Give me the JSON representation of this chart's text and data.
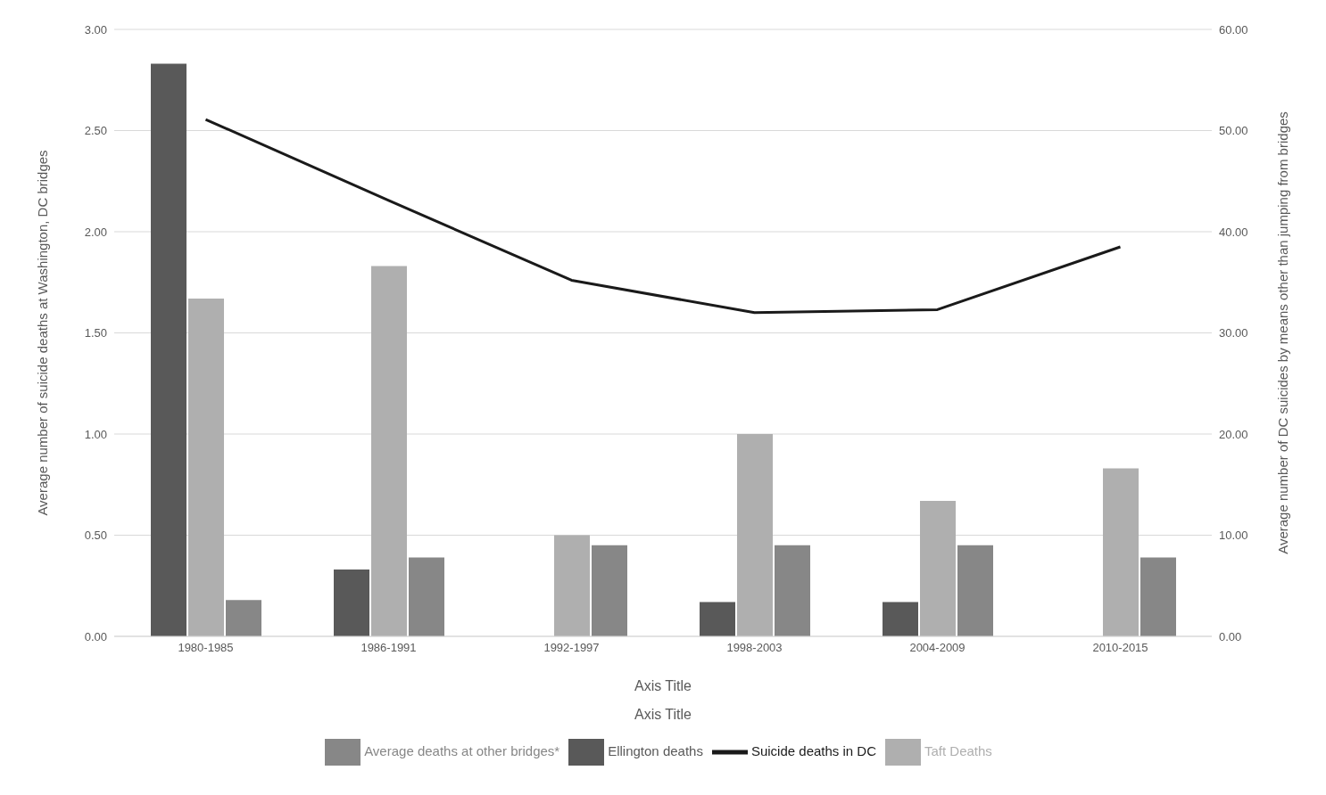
{
  "chart_data": {
    "type": "bar",
    "xlabel": "Axis Title",
    "ylabel": "Average number of suicide deaths at Washington, DC bridges",
    "y2label": "Average number of DC suicides by means other than jumping from bridges",
    "categories": [
      "1980-1985",
      "1986-1991",
      "1992-1997",
      "1998-2003",
      "2004-2009",
      "2010-2015"
    ],
    "series": [
      {
        "name": "Ellington deaths",
        "color": "#595959",
        "values": [
          2.83,
          0.33,
          0,
          0.17,
          0.17,
          0
        ]
      },
      {
        "name": "Taft Deaths",
        "color": "#afafaf",
        "values": [
          1.67,
          1.83,
          0.5,
          1.0,
          0.67,
          0.83
        ]
      },
      {
        "name": "Average deaths at other bridges*",
        "color": "#878787",
        "values": [
          0.18,
          0.39,
          0.45,
          0.45,
          0.45,
          0.39
        ]
      },
      {
        "name": "Suicide deaths in DC",
        "type": "line",
        "axis": "y2",
        "color": "#1a1a1a",
        "values": [
          51.1,
          43.1,
          35.2,
          32.0,
          32.3,
          38.5
        ]
      }
    ],
    "ylim": [
      0,
      3
    ],
    "yticks": [
      {
        "value": 0,
        "label": "0.00"
      },
      {
        "value": 0.5,
        "label": "0.50"
      },
      {
        "value": 1,
        "label": "1.00"
      },
      {
        "value": 1.5,
        "label": "1.50"
      },
      {
        "value": 2,
        "label": "2.00"
      },
      {
        "value": 2.5,
        "label": "2.50"
      },
      {
        "value": 3,
        "label": "3.00"
      }
    ],
    "y2lim": [
      0,
      60
    ],
    "y2ticks": [
      {
        "value": 0,
        "label": "0.00"
      },
      {
        "value": 10,
        "label": "10.00"
      },
      {
        "value": 20,
        "label": "20.00"
      },
      {
        "value": 30,
        "label": "30.00"
      },
      {
        "value": 40,
        "label": "40.00"
      },
      {
        "value": 50,
        "label": "50.00"
      },
      {
        "value": 60,
        "label": "60.00"
      }
    ],
    "grid": "y",
    "legend": "bottom",
    "marker": "none",
    "line_style": "solid",
    "annotations": [
      "Axis Title"
    ]
  }
}
